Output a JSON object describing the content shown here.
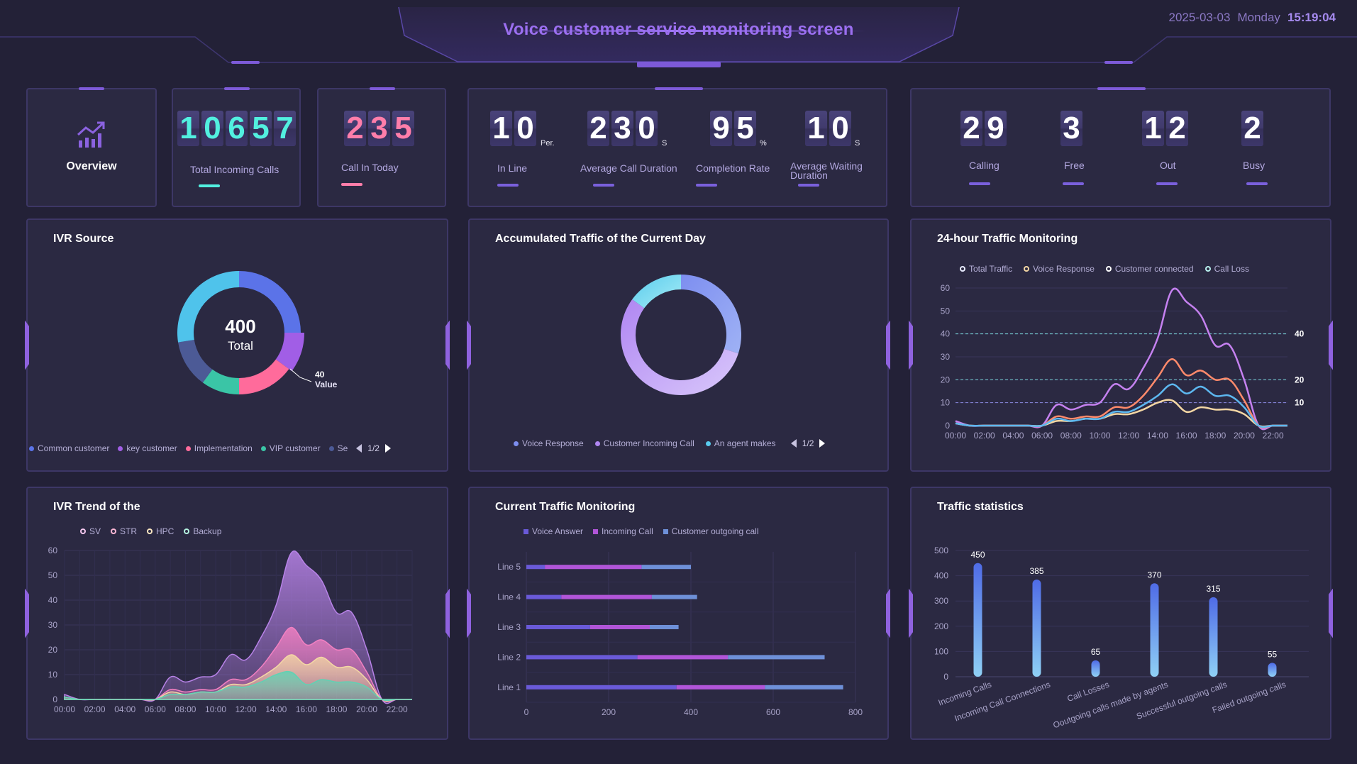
{
  "header": {
    "title": "Voice customer service monitoring screen",
    "date": "2025-03-03",
    "weekday": "Monday",
    "time": "15:19:04"
  },
  "overview": {
    "label": "Overview",
    "icon": "trend-chart-icon"
  },
  "total_incoming": {
    "digits": [
      "1",
      "0",
      "6",
      "5",
      "7"
    ],
    "label": "Total Incoming Calls",
    "color": "#52f0e0"
  },
  "call_in_today": {
    "digits": [
      "2",
      "3",
      "5"
    ],
    "label": "Call In Today",
    "color": "#ff7eaa"
  },
  "line_stats": [
    {
      "digits": [
        "1",
        "0"
      ],
      "unit": "Per.",
      "label": "In Line"
    },
    {
      "digits": [
        "2",
        "3",
        "0"
      ],
      "unit": "S",
      "label": "Average Call Duration"
    },
    {
      "digits": [
        "9",
        "5"
      ],
      "unit": "%",
      "label": "Completion Rate"
    },
    {
      "digits": [
        "1",
        "0"
      ],
      "unit": "S",
      "label_line1": "Average Waiting",
      "label_line2": "Duration"
    }
  ],
  "agent_stats": [
    {
      "digits": [
        "2",
        "9"
      ],
      "label": "Calling"
    },
    {
      "digits": [
        "3"
      ],
      "label": "Free"
    },
    {
      "digits": [
        "1",
        "2"
      ],
      "label": "Out"
    },
    {
      "digits": [
        "2"
      ],
      "label": "Busy"
    }
  ],
  "ivr_source": {
    "title": "IVR Source",
    "center_value": "400",
    "center_label": "Total",
    "callout_value": "40",
    "callout_label": "Value",
    "pager": "1/2",
    "legend": [
      {
        "name": "Common customer",
        "color": "#5b73e8"
      },
      {
        "name": "key customer",
        "color": "#a15ee6"
      },
      {
        "name": "Implementation",
        "color": "#ff6b9b"
      },
      {
        "name": "VIP customer",
        "color": "#3ac5a6"
      },
      {
        "name": "Se",
        "color": "#4c5a96"
      }
    ],
    "chart_data": {
      "type": "pie",
      "slices": [
        {
          "name": "Common customer",
          "value": 100,
          "color": "#5b73e8"
        },
        {
          "name": "key customer",
          "value": 40,
          "color": "#a15ee6"
        },
        {
          "name": "Implementation",
          "value": 60,
          "color": "#ff6b9b"
        },
        {
          "name": "VIP customer",
          "value": 40,
          "color": "#3ac5a6"
        },
        {
          "name": "Se",
          "value": 50,
          "color": "#4c5a96"
        },
        {
          "name": "",
          "value": 110,
          "color": "#4fc3eb"
        }
      ]
    }
  },
  "accumulated_traffic": {
    "title": "Accumulated Traffic of the Current Day",
    "pager": "1/2",
    "legend": [
      {
        "name": "Voice Response",
        "color": "#7d8ef0"
      },
      {
        "name": "Customer Incoming Call",
        "color": "#b086f2"
      },
      {
        "name": "An agent makes",
        "color": "#59cbee"
      }
    ],
    "chart_data": {
      "type": "pie",
      "slices": [
        {
          "name": "Voice Response",
          "value": 30,
          "color": "#7d8ef0"
        },
        {
          "name": "Customer Incoming Call",
          "value": 55,
          "color": "#b086f2"
        },
        {
          "name": "An agent makes",
          "value": 15,
          "color": "#59cbee"
        }
      ]
    }
  },
  "traffic_24h": {
    "title": "24-hour Traffic Monitoring",
    "chart_data": {
      "type": "line",
      "x": [
        "00:00",
        "01:00",
        "02:00",
        "03:00",
        "04:00",
        "05:00",
        "06:00",
        "07:00",
        "08:00",
        "09:00",
        "10:00",
        "11:00",
        "12:00",
        "13:00",
        "14:00",
        "15:00",
        "16:00",
        "17:00",
        "18:00",
        "19:00",
        "20:00",
        "21:00",
        "22:00",
        "23:00"
      ],
      "xticks": [
        "00:00",
        "02:00",
        "04:00",
        "06:00",
        "08:00",
        "10:00",
        "12:00",
        "14:00",
        "16:00",
        "18:00",
        "20:00",
        "22:00"
      ],
      "ylim": [
        0,
        60
      ],
      "yticks": [
        0,
        10,
        20,
        30,
        40,
        50,
        60
      ],
      "series": [
        {
          "name": "Total Traffic",
          "color": "#c581f0",
          "values": [
            2,
            0,
            0,
            0,
            0,
            0,
            0,
            9,
            7,
            9,
            10,
            18,
            16,
            25,
            38,
            59,
            54,
            48,
            35,
            35,
            20,
            0,
            0,
            0
          ]
        },
        {
          "name": "Voice Response",
          "color": "#f4d7a4",
          "values": [
            1,
            0,
            0,
            0,
            0,
            0,
            0,
            2,
            2,
            3,
            3,
            5,
            5,
            7,
            10,
            11,
            6,
            8,
            7,
            7,
            5,
            0,
            0,
            0
          ]
        },
        {
          "name": "Customer connected",
          "color": "#ff8a6b",
          "values": [
            1,
            0,
            0,
            0,
            0,
            0,
            0,
            4,
            3,
            4,
            4,
            8,
            8,
            13,
            21,
            29,
            22,
            24,
            20,
            20,
            11,
            0,
            0,
            0
          ]
        },
        {
          "name": "Call Loss",
          "color": "#5db8f0",
          "values": [
            1,
            0,
            0,
            0,
            0,
            0,
            0,
            3,
            2,
            3,
            3,
            6,
            6,
            9,
            13,
            18,
            14,
            17,
            13,
            13,
            8,
            0,
            0,
            0
          ]
        }
      ],
      "marklines": [
        {
          "value": 40,
          "label": "40",
          "color": "#7ad8dc"
        },
        {
          "value": 20,
          "label": "20",
          "color": "#7ad8dc"
        },
        {
          "value": 10,
          "label": "10",
          "color": "#8a8ae0"
        }
      ]
    }
  },
  "ivr_trend": {
    "title": "IVR Trend of the",
    "chart_data": {
      "type": "area",
      "x": [
        "00:00",
        "01:00",
        "02:00",
        "03:00",
        "04:00",
        "05:00",
        "06:00",
        "07:00",
        "08:00",
        "09:00",
        "10:00",
        "11:00",
        "12:00",
        "13:00",
        "14:00",
        "15:00",
        "16:00",
        "17:00",
        "18:00",
        "19:00",
        "20:00",
        "21:00",
        "22:00",
        "23:00"
      ],
      "xticks": [
        "00:00",
        "02:00",
        "04:00",
        "06:00",
        "08:00",
        "10:00",
        "12:00",
        "14:00",
        "16:00",
        "18:00",
        "20:00",
        "22:00"
      ],
      "ylim": [
        0,
        60
      ],
      "yticks": [
        0,
        10,
        20,
        30,
        40,
        50,
        60
      ],
      "series": [
        {
          "name": "SV",
          "color": "#b883e8",
          "values": [
            2,
            0,
            0,
            0,
            0,
            0,
            0,
            9,
            7,
            9,
            10,
            18,
            16,
            25,
            38,
            59,
            54,
            48,
            35,
            35,
            20,
            0,
            0,
            0
          ]
        },
        {
          "name": "STR",
          "color": "#f280c2",
          "values": [
            1,
            0,
            0,
            0,
            0,
            0,
            0,
            4,
            3,
            4,
            4,
            8,
            8,
            13,
            21,
            29,
            22,
            24,
            20,
            20,
            11,
            0,
            0,
            0
          ]
        },
        {
          "name": "HPC",
          "color": "#f4d7a4",
          "values": [
            1,
            0,
            0,
            0,
            0,
            0,
            0,
            3,
            2,
            3,
            3,
            6,
            6,
            9,
            13,
            18,
            14,
            17,
            13,
            13,
            8,
            0,
            0,
            0
          ]
        },
        {
          "name": "Backup",
          "color": "#5fd2b4",
          "values": [
            1,
            0,
            0,
            0,
            0,
            0,
            0,
            2,
            2,
            3,
            3,
            5,
            5,
            7,
            10,
            11,
            6,
            8,
            7,
            7,
            5,
            0,
            0,
            0
          ]
        }
      ]
    }
  },
  "current_traffic": {
    "title": "Current Traffic Monitoring",
    "chart_data": {
      "type": "bar",
      "orientation": "horizontal-stacked",
      "categories": [
        "Line 1",
        "Line 2",
        "Line 3",
        "Line 4",
        "Line 5"
      ],
      "xlim": [
        0,
        800
      ],
      "xticks": [
        0,
        200,
        400,
        600,
        800
      ],
      "series": [
        {
          "name": "Voice Answer",
          "color": "#6a5ad8",
          "values": [
            365,
            270,
            155,
            85,
            45
          ]
        },
        {
          "name": "Incoming Call",
          "color": "#b155d8",
          "values": [
            215,
            220,
            145,
            220,
            235
          ]
        },
        {
          "name": "Customer outgoing call",
          "color": "#6e90d8",
          "values": [
            190,
            235,
            70,
            110,
            120
          ]
        }
      ]
    }
  },
  "traffic_stats": {
    "title": "Traffic statistics",
    "chart_data": {
      "type": "bar",
      "categories": [
        "Incoming Calls",
        "Incoming Call Connections",
        "Call Losses",
        "Ooutgoing calls made by agents",
        "Successful outgoing calls",
        "Failed outgoing calls"
      ],
      "values": [
        450,
        385,
        65,
        370,
        315,
        55
      ],
      "ylim": [
        0,
        500
      ],
      "yticks": [
        0,
        100,
        200,
        300,
        400,
        500
      ]
    }
  }
}
